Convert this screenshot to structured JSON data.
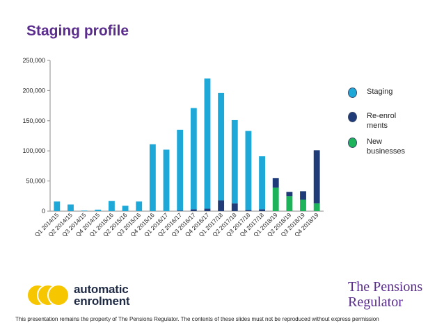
{
  "slide": {
    "title": "Staging profile",
    "footer": "This presentation remains the property of The Pensions Regulator. The contents of these slides must not be reproduced without express permission",
    "logo_left": "automatic enrolment",
    "logo_left_lines": [
      "automatic",
      "enrolment"
    ],
    "logo_right_lines": [
      "The Pensions",
      "Regulator"
    ]
  },
  "chart_data": {
    "type": "bar",
    "stacked": true,
    "categories": [
      "Q1 2014/15",
      "Q2 2014/15",
      "Q3 2014/15",
      "Q4 2014/15",
      "Q1 2015/16",
      "Q2 2015/16",
      "Q3 2015/16",
      "Q4 2015/16",
      "Q1 2016/17",
      "Q2 2016/17",
      "Q3 2016/17",
      "Q4 2016/17",
      "Q1 2017/18",
      "Q2 2017/18",
      "Q3 2017/18",
      "Q4 2017/18",
      "Q1 2018/19",
      "Q2 2018/19",
      "Q3 2018/19",
      "Q4 2018/19"
    ],
    "series": [
      {
        "name": "Staging",
        "color": "#1ea8d8",
        "values": [
          16000,
          11000,
          1000,
          2500,
          17000,
          9000,
          16000,
          111000,
          102000,
          134000,
          168000,
          216000,
          178000,
          138000,
          131000,
          88000,
          0,
          0,
          0,
          0
        ]
      },
      {
        "name": "Re-enrolments",
        "color": "#1f3c78",
        "values": [
          0,
          0,
          0,
          0,
          0,
          0,
          0,
          0,
          0,
          1000,
          3000,
          4000,
          18000,
          13000,
          2000,
          3000,
          16000,
          7000,
          14000,
          88000
        ]
      },
      {
        "name": "New businesses",
        "color": "#1db35a",
        "values": [
          0,
          0,
          0,
          0,
          0,
          0,
          0,
          0,
          0,
          0,
          0,
          0,
          0,
          0,
          0,
          0,
          39000,
          25000,
          19000,
          13000
        ]
      }
    ],
    "yticks": [
      "0",
      "50,000",
      "100,000",
      "150,000",
      "200,000",
      "250,000"
    ],
    "ylim": [
      0,
      250000
    ],
    "legend": "right",
    "grid": false
  }
}
